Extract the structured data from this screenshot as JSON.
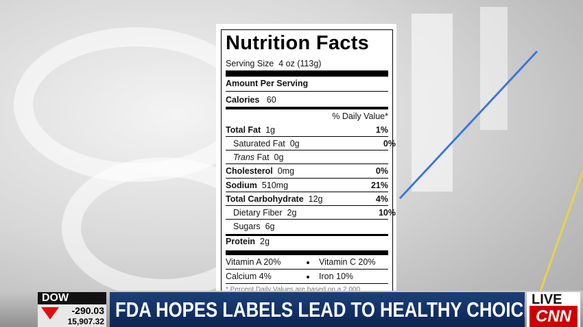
{
  "label": {
    "title": "Nutrition Facts",
    "serving": {
      "label": "Serving Size",
      "value": "4 oz (113g)"
    },
    "amount_per_serving": "Amount Per Serving",
    "calories": {
      "label": "Calories",
      "value": "60"
    },
    "daily_value_header": "% Daily Value*",
    "rows": [
      {
        "name": "Total Fat",
        "amount": "1g",
        "dv": "1%"
      },
      {
        "name": "Saturated Fat",
        "amount": "0g",
        "dv": "0%"
      },
      {
        "name_italic": "Trans",
        "name": "Fat",
        "amount": "0g"
      },
      {
        "name": "Cholesterol",
        "amount": "0mg",
        "dv": "0%"
      },
      {
        "name": "Sodium",
        "amount": "510mg",
        "dv": "21%"
      },
      {
        "name": "Total Carbohydrate",
        "amount": "12g",
        "dv": "4%"
      },
      {
        "name": "Dietary Fiber",
        "amount": "2g",
        "dv": "10%"
      },
      {
        "name": "Sugars",
        "amount": "6g"
      },
      {
        "name": "Protein",
        "amount": "2g"
      }
    ],
    "vitamins": [
      [
        "Vitamin A 20%",
        "Vitamin C 20%"
      ],
      [
        "Calcium 4%",
        "Iron 10%"
      ]
    ],
    "footnote": "* Percent Daily Values are based on a 2,000"
  },
  "ticker": {
    "index": "DOW",
    "change": "-290.03",
    "level": "15,907.32"
  },
  "headline": "FDA HOPES LABELS LEAD TO HEALTHY CHOICES",
  "live": "LIVE",
  "network": "CNN"
}
